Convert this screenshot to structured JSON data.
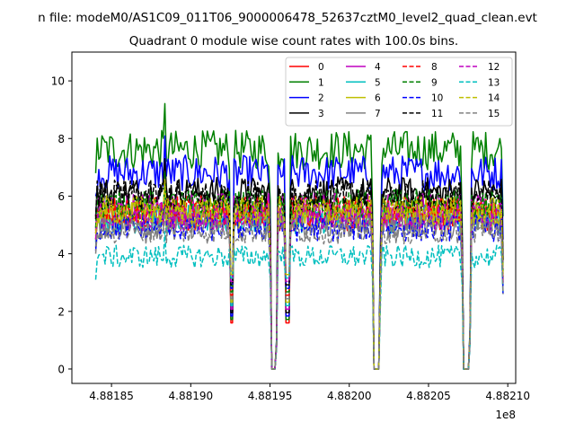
{
  "chart_data": {
    "type": "line",
    "suptitle": "n file: modeM0/AS1C09_011T06_9000006478_52637cztM0_level2_quad_clean.evt",
    "title": "Quadrant 0 module wise count rates with 100.0s bins.",
    "xlabel": "",
    "ylabel": "",
    "x_offset_label": "1e8",
    "x_range_scaled": [
      4.88184,
      4.882097
    ],
    "xlim": [
      4.881825,
      4.882105
    ],
    "ylim": [
      -0.5,
      11
    ],
    "x_ticks": [
      4.88185,
      4.8819,
      4.88195,
      4.882,
      4.88205,
      4.8821
    ],
    "x_tick_labels": [
      "4.88185",
      "4.88190",
      "4.88195",
      "4.88200",
      "4.88205",
      "4.88210"
    ],
    "y_ticks": [
      0,
      2,
      4,
      6,
      8,
      10
    ],
    "y_tick_labels": [
      "0",
      "2",
      "4",
      "6",
      "8",
      "10"
    ],
    "gaps_scaled": [
      [
        4.881951,
        4.881954
      ],
      [
        4.8820155,
        4.882019
      ],
      [
        4.882072,
        4.882076
      ]
    ],
    "dips_scaled": [
      4.8819258,
      4.881961
    ],
    "legend_position": "upper right",
    "legend_columns": 4,
    "series": [
      {
        "name": "0",
        "color": "#ff0000",
        "dash": "solid",
        "mean": 5.3
      },
      {
        "name": "1",
        "color": "#008000",
        "dash": "solid",
        "mean": 7.6
      },
      {
        "name": "2",
        "color": "#0000ff",
        "dash": "solid",
        "mean": 6.8
      },
      {
        "name": "3",
        "color": "#000000",
        "dash": "solid",
        "mean": 6.1
      },
      {
        "name": "4",
        "color": "#bf00bf",
        "dash": "solid",
        "mean": 5.6
      },
      {
        "name": "5",
        "color": "#00bfbf",
        "dash": "solid",
        "mean": 5.2
      },
      {
        "name": "6",
        "color": "#bfbf00",
        "dash": "solid",
        "mean": 5.4
      },
      {
        "name": "7",
        "color": "#808080",
        "dash": "solid",
        "mean": 5.0
      },
      {
        "name": "8",
        "color": "#ff0000",
        "dash": "dashed",
        "mean": 5.5
      },
      {
        "name": "9",
        "color": "#008000",
        "dash": "dashed",
        "mean": 5.7
      },
      {
        "name": "10",
        "color": "#0000ff",
        "dash": "dashed",
        "mean": 4.9
      },
      {
        "name": "11",
        "color": "#000000",
        "dash": "dashed",
        "mean": 6.0
      },
      {
        "name": "12",
        "color": "#bf00bf",
        "dash": "dashed",
        "mean": 5.3
      },
      {
        "name": "13",
        "color": "#00bfbf",
        "dash": "dashed",
        "mean": 3.9
      },
      {
        "name": "14",
        "color": "#bfbf00",
        "dash": "dashed",
        "mean": 5.5
      },
      {
        "name": "15",
        "color": "#808080",
        "dash": "dashed",
        "mean": 4.8
      }
    ]
  }
}
